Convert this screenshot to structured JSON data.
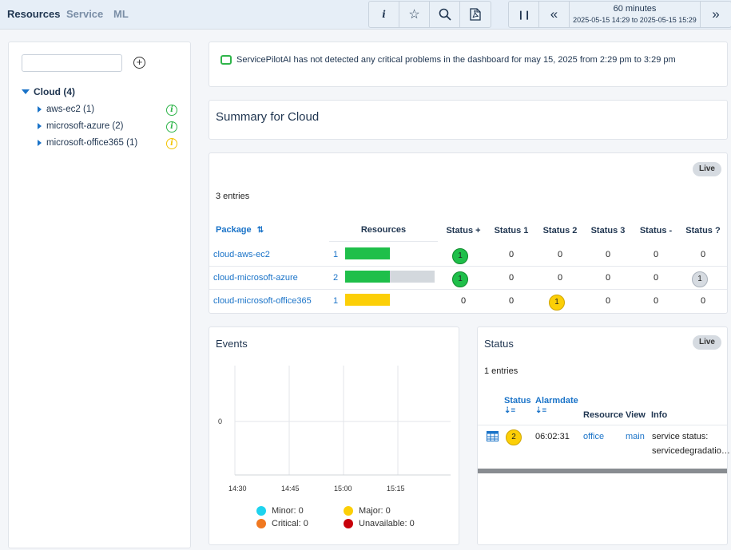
{
  "tabs": [
    "Resources",
    "Service",
    "ML"
  ],
  "toolbar": {
    "time_range": "60 minutes",
    "time_window": "2025-05-15 14:29 to 2025-05-15 15:29"
  },
  "sidebar": {
    "root_label": "Cloud (4)",
    "items": [
      {
        "label": "aws-ec2 (1)",
        "status": "green"
      },
      {
        "label": "microsoft-azure (2)",
        "status": "green"
      },
      {
        "label": "microsoft-office365 (1)",
        "status": "yellow"
      }
    ]
  },
  "ai_message": "ServicePilotAI has not detected any critical problems in the dashboard for may 15, 2025 from 2:29 pm to 3:29 pm",
  "summary_title": "Summary for Cloud",
  "package_table": {
    "live": "Live",
    "entries": "3 entries",
    "headers": [
      "Package",
      "Resources",
      "Status +",
      "Status 1",
      "Status 2",
      "Status 3",
      "Status -",
      "Status ?"
    ],
    "rows": [
      {
        "package": "cloud-aws-ec2",
        "resources": "1",
        "fill": [
          1,
          0
        ],
        "status": [
          "1",
          "0",
          "0",
          "0",
          "0",
          "0"
        ]
      },
      {
        "package": "cloud-microsoft-azure",
        "resources": "2",
        "fill": [
          1,
          1
        ],
        "status": [
          "1",
          "0",
          "0",
          "0",
          "0",
          "1"
        ]
      },
      {
        "package": "cloud-microsoft-office365",
        "resources": "1",
        "fill": [
          1,
          0
        ],
        "status": [
          "0",
          "0",
          "1",
          "0",
          "0",
          "0"
        ]
      }
    ]
  },
  "events": {
    "title": "Events",
    "chart_data": {
      "type": "line",
      "x_ticks": [
        "14:30",
        "14:45",
        "15:00",
        "15:15"
      ],
      "y_ticks": [
        "0"
      ],
      "legend": [
        {
          "label": "Minor: 0",
          "color": "#1fd3ee"
        },
        {
          "label": "Major: 0",
          "color": "#fccf07"
        },
        {
          "label": "Critical: 0",
          "color": "#f07820"
        },
        {
          "label": "Unavailable: 0",
          "color": "#c8000a"
        }
      ]
    }
  },
  "status_panel": {
    "title": "Status",
    "live": "Live",
    "entries": "1 entries",
    "headers": {
      "status": "Status",
      "alarmdate": "Alarmdate",
      "resource": "Resource",
      "view": "View",
      "info": "Info"
    },
    "row": {
      "status": "2",
      "alarmdate": "06:02:31",
      "resource": "office",
      "view": "main",
      "info_line1": "service status:",
      "info_line2": "servicedegradatio…"
    }
  }
}
